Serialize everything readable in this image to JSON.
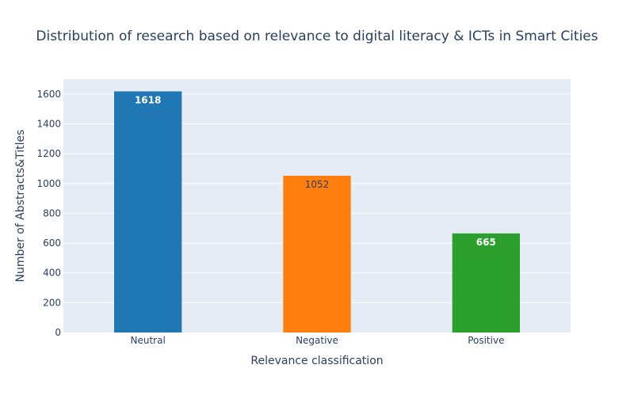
{
  "chart_data": {
    "type": "bar",
    "title": "Distribution of research based on relevance to digital literacy & ICTs in Smart Cities",
    "xlabel": "Relevance classification",
    "ylabel": "Number of Abstracts&Titles",
    "categories": [
      "Neutral",
      "Negative",
      "Positive"
    ],
    "values": [
      1618,
      1052,
      665
    ],
    "colors": [
      "#1f77b4",
      "#ff7f0e",
      "#2ca02c"
    ],
    "ylim": [
      0,
      1700
    ],
    "yticks": [
      0,
      200,
      400,
      600,
      800,
      1000,
      1200,
      1400,
      1600
    ],
    "grid": true,
    "legend": "none",
    "plot_background": "#e5ecf6",
    "label_colors": [
      "#ffffff",
      "#2a3f5f",
      "#ffffff"
    ]
  }
}
